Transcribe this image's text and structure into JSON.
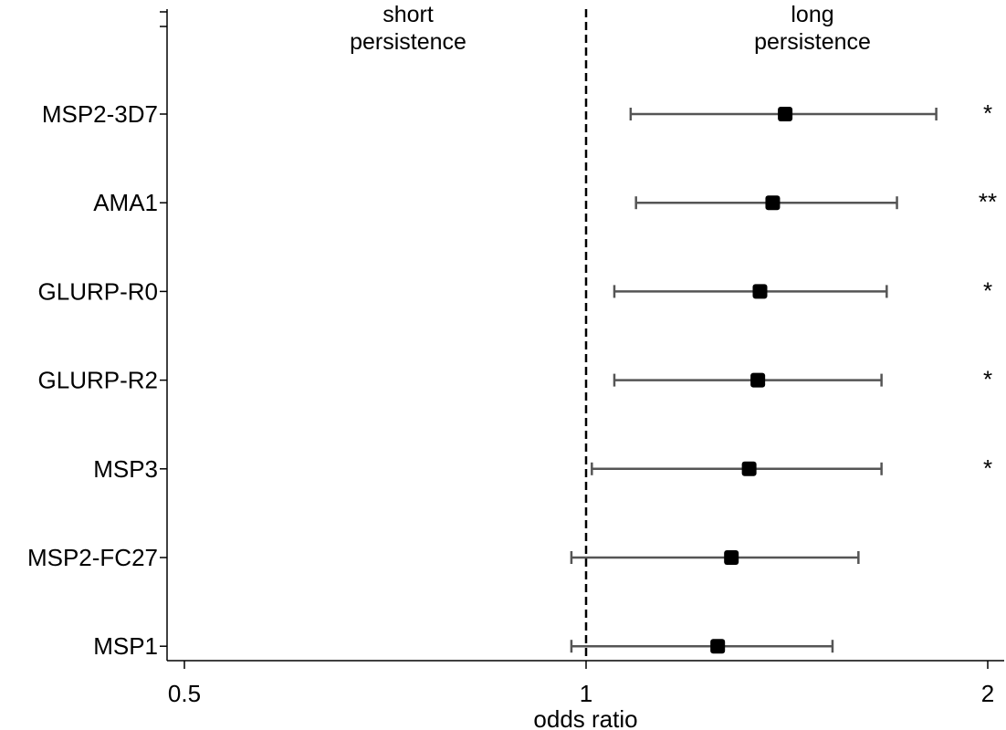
{
  "chart_data": {
    "type": "forest",
    "xlabel": "odds ratio",
    "x_scale": "log",
    "xlim": [
      0.5,
      2
    ],
    "x_ticks": [
      {
        "value": 0.5,
        "label": "0.5"
      },
      {
        "value": 1,
        "label": "1"
      },
      {
        "value": 2,
        "label": "2"
      }
    ],
    "reference_line": 1,
    "region_labels": {
      "left": [
        "short",
        "persistence"
      ],
      "right": [
        "long",
        "persistence"
      ]
    },
    "rows": [
      {
        "label": "MSP2-3D7",
        "estimate": 1.41,
        "lower": 1.08,
        "upper": 1.83,
        "significance": "*"
      },
      {
        "label": "AMA1",
        "estimate": 1.38,
        "lower": 1.09,
        "upper": 1.71,
        "significance": "**"
      },
      {
        "label": "GLURP-R0",
        "estimate": 1.35,
        "lower": 1.05,
        "upper": 1.68,
        "significance": "*"
      },
      {
        "label": "GLURP-R2",
        "estimate": 1.345,
        "lower": 1.05,
        "upper": 1.665,
        "significance": "*"
      },
      {
        "label": "MSP3",
        "estimate": 1.325,
        "lower": 1.01,
        "upper": 1.665,
        "significance": "*"
      },
      {
        "label": "MSP2-FC27",
        "estimate": 1.285,
        "lower": 0.975,
        "upper": 1.6,
        "significance": ""
      },
      {
        "label": "MSP1",
        "estimate": 1.255,
        "lower": 0.975,
        "upper": 1.53,
        "significance": ""
      }
    ],
    "colors": {
      "whisker": "#555555",
      "point": "#000000",
      "axis": "#000000"
    }
  }
}
